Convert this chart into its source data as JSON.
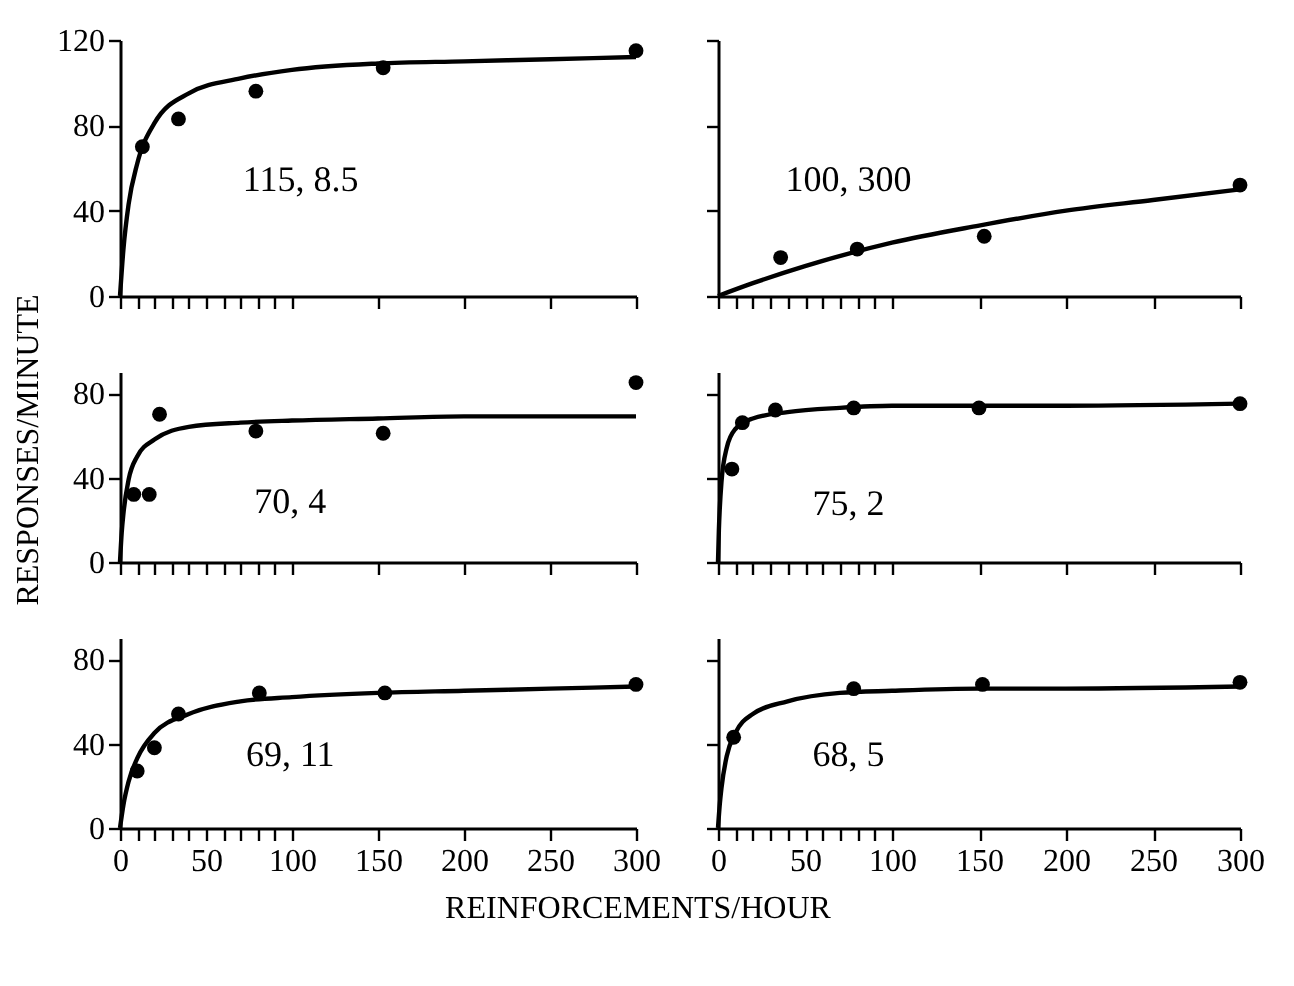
{
  "chart_data": [
    {
      "type": "scatter",
      "annotations": [
        "115, 8.5"
      ],
      "marker": "circle",
      "grid": false,
      "tick_labels": "y",
      "xlim": [
        0,
        300
      ],
      "ylim": [
        0,
        120
      ],
      "yticks": [
        0,
        40,
        80,
        120
      ],
      "xticks": [
        0,
        {
          "value": 10,
          "label": null
        },
        {
          "value": 20,
          "label": null
        },
        {
          "value": 30,
          "label": null
        },
        {
          "value": 40,
          "label": null
        },
        50,
        {
          "value": 60,
          "label": null
        },
        {
          "value": 70,
          "label": null
        },
        {
          "value": 80,
          "label": null
        },
        {
          "value": 90,
          "label": null
        },
        100,
        150,
        200,
        250,
        300
      ],
      "series": [
        {
          "color": "#000000",
          "x": [
            13,
            34,
            79,
            153,
            300
          ],
          "values": [
            70,
            83,
            96,
            107,
            115
          ]
        },
        {
          "type": "line",
          "marker": "none",
          "color": "#000000",
          "x": [
            0,
            2,
            5,
            10,
            20,
            40,
            70,
            100,
            150,
            200,
            250,
            300
          ],
          "values": [
            0,
            22,
            43,
            62,
            81,
            95,
            102,
            106,
            109,
            110,
            111,
            112
          ]
        }
      ]
    },
    {
      "type": "scatter",
      "annotations": [
        "100, 300"
      ],
      "marker": "circle",
      "grid": false,
      "tick_labels": false,
      "xlim": [
        0,
        300
      ],
      "ylim": [
        0,
        120
      ],
      "yticks": [
        0,
        40,
        80,
        120
      ],
      "xticks": [
        0,
        {
          "value": 10,
          "label": null
        },
        {
          "value": 20,
          "label": null
        },
        {
          "value": 30,
          "label": null
        },
        {
          "value": 40,
          "label": null
        },
        50,
        {
          "value": 60,
          "label": null
        },
        {
          "value": 70,
          "label": null
        },
        {
          "value": 80,
          "label": null
        },
        {
          "value": 90,
          "label": null
        },
        100,
        150,
        200,
        250,
        300
      ],
      "series": [
        {
          "color": "#000000",
          "x": [
            36,
            80,
            153,
            300
          ],
          "values": [
            18,
            22,
            28,
            52
          ]
        },
        {
          "type": "line",
          "marker": "none",
          "color": "#000000",
          "x": [
            0,
            20,
            50,
            100,
            150,
            200,
            250,
            300
          ],
          "values": [
            0,
            6,
            14,
            25,
            33,
            40,
            45,
            50
          ]
        }
      ]
    },
    {
      "type": "scatter",
      "ylabel": "RESPONSES/MINUTE",
      "annotations": [
        "70, 4"
      ],
      "marker": "circle",
      "grid": false,
      "tick_labels": "y",
      "xlim": [
        0,
        300
      ],
      "ylim": [
        0,
        90
      ],
      "yticks": [
        0,
        40,
        80
      ],
      "xticks": [
        0,
        {
          "value": 10,
          "label": null
        },
        {
          "value": 20,
          "label": null
        },
        {
          "value": 30,
          "label": null
        },
        {
          "value": 40,
          "label": null
        },
        50,
        {
          "value": 60,
          "label": null
        },
        {
          "value": 70,
          "label": null
        },
        {
          "value": 80,
          "label": null
        },
        {
          "value": 90,
          "label": null
        },
        100,
        150,
        200,
        250,
        300
      ],
      "series": [
        {
          "color": "#000000",
          "x": [
            8,
            17,
            23,
            79,
            153,
            300
          ],
          "values": [
            32,
            32,
            70,
            62,
            61,
            85
          ]
        },
        {
          "type": "line",
          "marker": "none",
          "color": "#000000",
          "x": [
            0,
            1,
            2,
            5,
            10,
            20,
            40,
            70,
            100,
            150,
            200,
            300
          ],
          "values": [
            0,
            14,
            23,
            39,
            50,
            58,
            64,
            66,
            67,
            68,
            69,
            69
          ]
        }
      ]
    },
    {
      "type": "scatter",
      "annotations": [
        "75, 2"
      ],
      "marker": "circle",
      "grid": false,
      "tick_labels": false,
      "xlim": [
        0,
        300
      ],
      "ylim": [
        0,
        90
      ],
      "yticks": [
        0,
        40,
        80
      ],
      "xticks": [
        0,
        {
          "value": 10,
          "label": null
        },
        {
          "value": 20,
          "label": null
        },
        {
          "value": 30,
          "label": null
        },
        {
          "value": 40,
          "label": null
        },
        50,
        {
          "value": 60,
          "label": null
        },
        {
          "value": 70,
          "label": null
        },
        {
          "value": 80,
          "label": null
        },
        {
          "value": 90,
          "label": null
        },
        100,
        150,
        200,
        250,
        300
      ],
      "series": [
        {
          "color": "#000000",
          "x": [
            8,
            14,
            33,
            78,
            150,
            300
          ],
          "values": [
            44,
            66,
            72,
            73,
            73,
            75
          ]
        },
        {
          "type": "line",
          "marker": "none",
          "color": "#000000",
          "x": [
            0,
            0.5,
            1,
            2,
            5,
            10,
            20,
            40,
            70,
            100,
            150,
            200,
            300
          ],
          "values": [
            0,
            15,
            25,
            38,
            54,
            63,
            68,
            71,
            73,
            74,
            74,
            74,
            75
          ]
        }
      ]
    },
    {
      "type": "scatter",
      "xlabel": "REINFORCEMENTS/HOUR",
      "annotations": [
        "69, 11"
      ],
      "marker": "circle",
      "grid": false,
      "xlim": [
        0,
        300
      ],
      "ylim": [
        0,
        90
      ],
      "yticks": [
        0,
        40,
        80
      ],
      "xticks": [
        0,
        {
          "value": 10,
          "label": null
        },
        {
          "value": 20,
          "label": null
        },
        {
          "value": 30,
          "label": null
        },
        {
          "value": 40,
          "label": null
        },
        50,
        {
          "value": 60,
          "label": null
        },
        {
          "value": 70,
          "label": null
        },
        {
          "value": 80,
          "label": null
        },
        {
          "value": 90,
          "label": null
        },
        100,
        150,
        200,
        250,
        300
      ],
      "series": [
        {
          "color": "#000000",
          "x": [
            10,
            20,
            34,
            81,
            154,
            300
          ],
          "values": [
            27,
            38,
            54,
            64,
            64,
            68
          ]
        },
        {
          "type": "line",
          "marker": "none",
          "color": "#000000",
          "x": [
            0,
            2,
            5,
            10,
            20,
            40,
            70,
            100,
            150,
            200,
            250,
            300
          ],
          "values": [
            0,
            11,
            22,
            33,
            45,
            54,
            60,
            62,
            64,
            65,
            66,
            67
          ]
        }
      ]
    },
    {
      "type": "scatter",
      "annotations": [
        "68, 5"
      ],
      "marker": "circle",
      "grid": false,
      "tick_labels": "x",
      "xlim": [
        0,
        300
      ],
      "ylim": [
        0,
        90
      ],
      "yticks": [
        0,
        40,
        80
      ],
      "xticks": [
        0,
        {
          "value": 10,
          "label": null
        },
        {
          "value": 20,
          "label": null
        },
        {
          "value": 30,
          "label": null
        },
        {
          "value": 40,
          "label": null
        },
        50,
        {
          "value": 60,
          "label": null
        },
        {
          "value": 70,
          "label": null
        },
        {
          "value": 80,
          "label": null
        },
        {
          "value": 90,
          "label": null
        },
        100,
        150,
        200,
        250,
        300
      ],
      "series": [
        {
          "color": "#000000",
          "x": [
            9,
            78,
            152,
            300
          ],
          "values": [
            43,
            66,
            68,
            69
          ]
        },
        {
          "type": "line",
          "marker": "none",
          "color": "#000000",
          "x": [
            0,
            1,
            2,
            5,
            10,
            20,
            40,
            70,
            100,
            150,
            200,
            300
          ],
          "values": [
            0,
            11,
            19,
            34,
            45,
            54,
            60,
            64,
            65,
            66,
            66,
            67
          ]
        }
      ]
    }
  ]
}
